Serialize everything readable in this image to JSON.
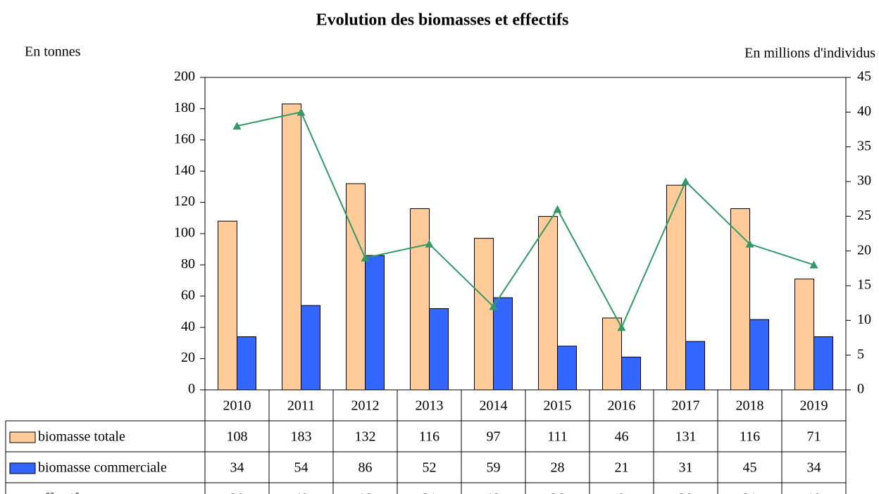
{
  "chart_data": {
    "type": "bar",
    "title": "Evolution  des biomasses et effectifs",
    "y_label": "En tonnes",
    "y2_label": "En millions d'individus",
    "categories": [
      "2010",
      "2011",
      "2012",
      "2013",
      "2014",
      "2015",
      "2016",
      "2017",
      "2018",
      "2019"
    ],
    "series": [
      {
        "name": "biomasse totale",
        "type": "bar",
        "color": "#ffcc99",
        "values": [
          108,
          183,
          132,
          116,
          97,
          111,
          46,
          131,
          116,
          71
        ]
      },
      {
        "name": "biomasse commerciale",
        "type": "bar",
        "color": "#3366ff",
        "values": [
          34,
          54,
          86,
          52,
          59,
          28,
          21,
          31,
          45,
          34
        ]
      },
      {
        "name": "effectifs totaux",
        "type": "line",
        "axis": "y2",
        "color": "#339966",
        "values": [
          38,
          40,
          19,
          21,
          12,
          26,
          9,
          30,
          21,
          18
        ]
      }
    ],
    "ylim": [
      0,
      200
    ],
    "yticks": [
      0,
      20,
      40,
      60,
      80,
      100,
      120,
      140,
      160,
      180,
      200
    ],
    "y2lim": [
      0,
      45
    ],
    "y2ticks": [
      0,
      5,
      10,
      15,
      20,
      25,
      30,
      35,
      40,
      45
    ]
  }
}
